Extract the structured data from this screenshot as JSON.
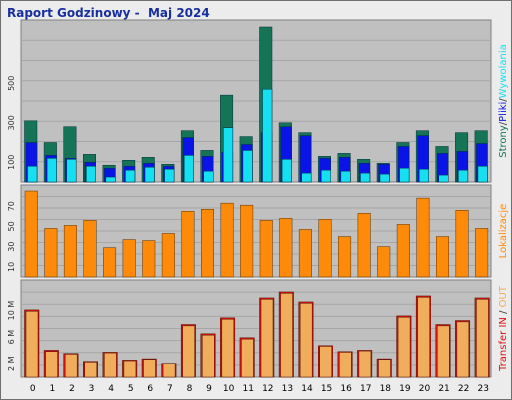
{
  "title": "Raport Godzinowy -  Maj 2024",
  "colors": {
    "strony": "#157356",
    "pliki": "#0a14e6",
    "wywolania": "#15dff0",
    "lokalizacje": "#fe8a0a",
    "transfer_in": "#d81010",
    "transfer_out": "#f0ad5c",
    "panel_bg": "#c0c0c0"
  },
  "x_labels": [
    "0",
    "1",
    "2",
    "3",
    "4",
    "5",
    "6",
    "7",
    "8",
    "9",
    "10",
    "11",
    "12",
    "13",
    "14",
    "15",
    "16",
    "17",
    "18",
    "19",
    "20",
    "21",
    "22",
    "23"
  ],
  "chart_data": [
    {
      "type": "bar",
      "name": "hits",
      "categories": [
        "0",
        "1",
        "2",
        "3",
        "4",
        "5",
        "6",
        "7",
        "8",
        "9",
        "10",
        "11",
        "12",
        "13",
        "14",
        "15",
        "16",
        "17",
        "18",
        "19",
        "20",
        "21",
        "22",
        "23"
      ],
      "ylim": [
        0,
        785
      ],
      "yticks": [
        "100",
        "300",
        "500"
      ],
      "ylabel_parts": [
        {
          "text": "Strony",
          "color": "#157356"
        },
        {
          "text": "/",
          "color": "#404040"
        },
        {
          "text": "Pliki",
          "color": "#0a14e6"
        },
        {
          "text": "/",
          "color": "#404040"
        },
        {
          "text": "Wywolania",
          "color": "#15dff0"
        }
      ],
      "series": [
        {
          "name": "Strony",
          "values": [
            310,
            200,
            280,
            140,
            85,
            110,
            125,
            90,
            260,
            160,
            440,
            230,
            785,
            300,
            250,
            130,
            145,
            115,
            95,
            200,
            260,
            180,
            250,
            260
          ]
        },
        {
          "name": "Pliki",
          "values": [
            200,
            135,
            120,
            100,
            70,
            80,
            95,
            80,
            225,
            130,
            150,
            190,
            250,
            280,
            235,
            120,
            125,
            95,
            90,
            180,
            235,
            145,
            155,
            195
          ]
        },
        {
          "name": "Wywolania",
          "values": [
            80,
            120,
            115,
            80,
            25,
            60,
            75,
            65,
            135,
            55,
            275,
            160,
            470,
            115,
            45,
            60,
            55,
            45,
            40,
            70,
            65,
            35,
            60,
            80
          ]
        }
      ]
    },
    {
      "type": "bar",
      "name": "lokalizacje",
      "categories": [
        "0",
        "1",
        "2",
        "3",
        "4",
        "5",
        "6",
        "7",
        "8",
        "9",
        "10",
        "11",
        "12",
        "13",
        "14",
        "15",
        "16",
        "17",
        "18",
        "19",
        "20",
        "21",
        "22",
        "23"
      ],
      "ylim": [
        0,
        88
      ],
      "yticks": [
        "10",
        "30",
        "50",
        "70"
      ],
      "ylabel_parts": [
        {
          "text": "Lokalizacje",
          "color": "#fe8a0a"
        }
      ],
      "series": [
        {
          "name": "Lokalizacje",
          "values": [
            85,
            48,
            51,
            56,
            29,
            37,
            36,
            43,
            65,
            67,
            73,
            71,
            56,
            58,
            47,
            57,
            40,
            63,
            30,
            52,
            78,
            40,
            66,
            48
          ]
        }
      ]
    },
    {
      "type": "bar",
      "name": "transfer",
      "categories": [
        "0",
        "1",
        "2",
        "3",
        "4",
        "5",
        "6",
        "7",
        "8",
        "9",
        "10",
        "11",
        "12",
        "13",
        "14",
        "15",
        "16",
        "17",
        "18",
        "19",
        "20",
        "21",
        "22",
        "23"
      ],
      "ylim": [
        0,
        14.0
      ],
      "yticks": [
        "2 M",
        "6 M",
        "10 M"
      ],
      "ylabel_parts": [
        {
          "text": "Transfer",
          "color": "#d81010"
        },
        {
          "text": " ",
          "color": "#404040"
        },
        {
          "text": "IN",
          "color": "#d81010"
        },
        {
          "text": " / ",
          "color": "#404040"
        },
        {
          "text": "OUT",
          "color": "#f0ad5c"
        }
      ],
      "series": [
        {
          "name": "IN",
          "values": [
            10.1,
            4.0,
            3.5,
            2.3,
            3.7,
            2.5,
            2.7,
            2.0,
            7.9,
            6.5,
            8.9,
            5.9,
            11.9,
            12.8,
            11.3,
            4.7,
            3.8,
            4.0,
            2.7,
            9.2,
            12.2,
            7.9,
            8.5,
            11.9
          ]
        },
        {
          "name": "OUT",
          "values": [
            9.9,
            3.8,
            3.4,
            2.2,
            3.6,
            2.4,
            2.6,
            2.0,
            7.7,
            6.3,
            8.7,
            5.7,
            11.7,
            12.6,
            11.1,
            4.6,
            3.7,
            3.9,
            2.6,
            9.0,
            12.0,
            7.7,
            8.3,
            11.7
          ]
        }
      ]
    }
  ]
}
